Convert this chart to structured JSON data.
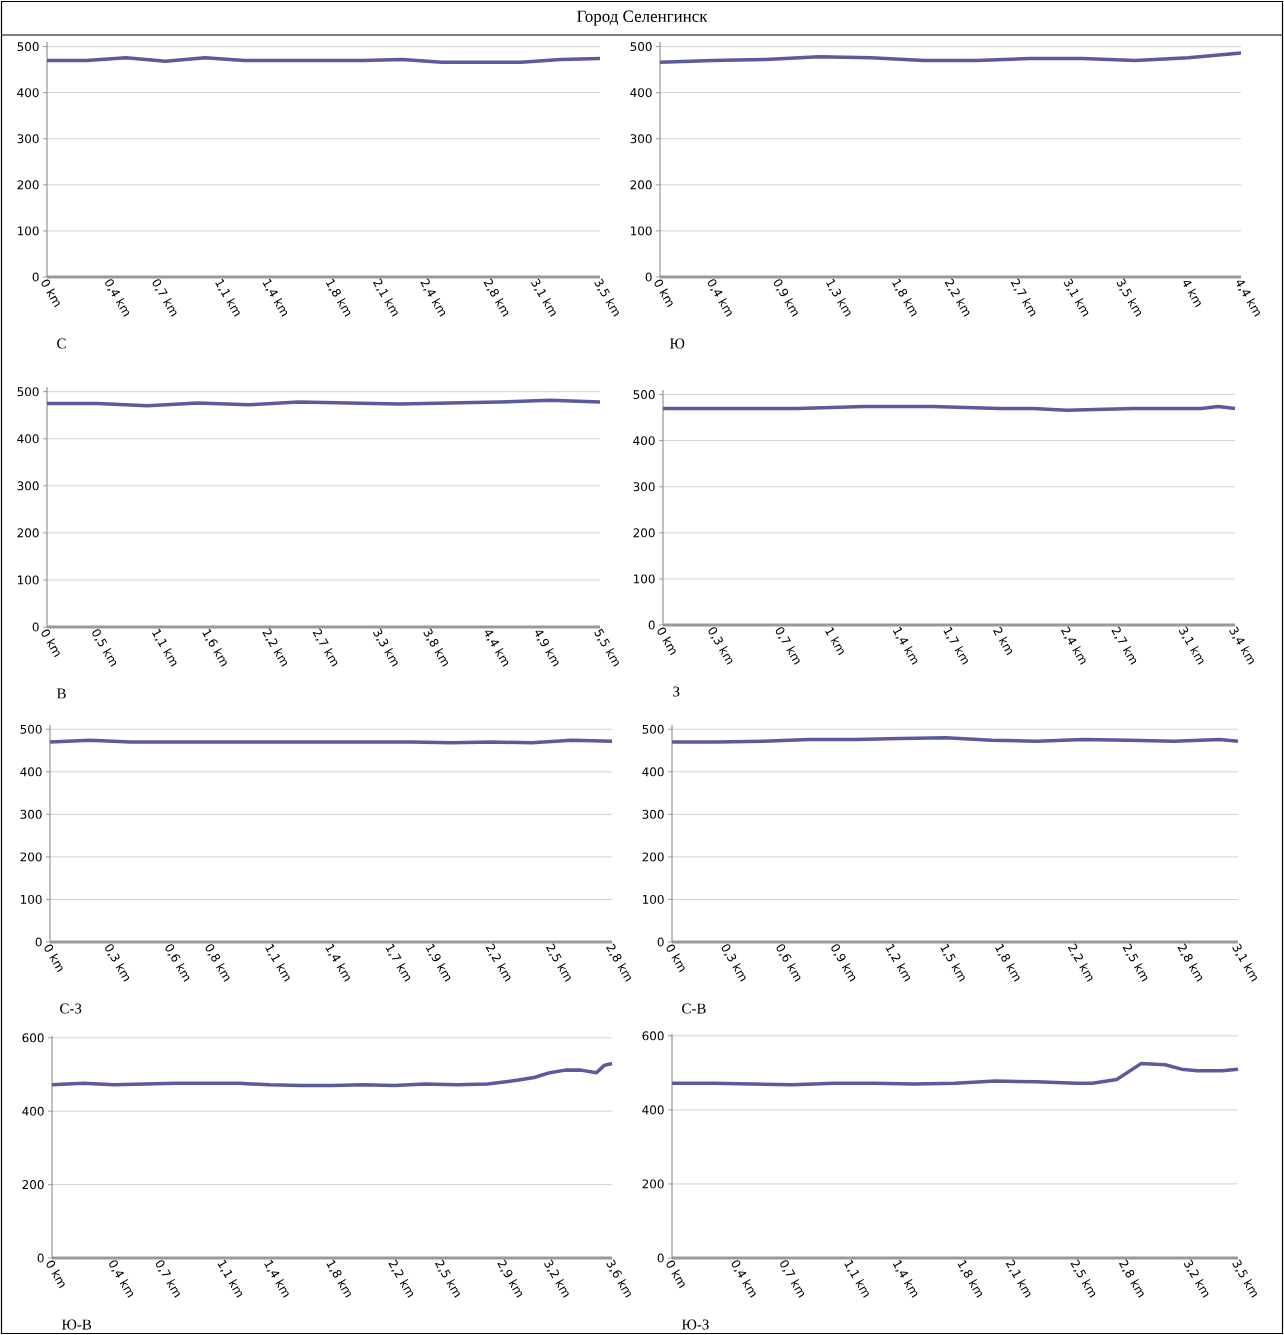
{
  "chart_data": [
    {
      "type": "line",
      "title": "Город Селенгинск",
      "xlabel": "С",
      "color": "#5a5a9c",
      "grid": "y",
      "xlim": [
        0,
        3.5
      ],
      "ylim": [
        0,
        510
      ],
      "yticks": [
        0,
        100,
        200,
        300,
        400,
        500
      ],
      "xticks": [
        {
          "value": 0,
          "label": "0 km"
        },
        {
          "value": 0.4,
          "label": "0,4 km"
        },
        {
          "value": 0.7,
          "label": "0,7 km"
        },
        {
          "value": 1.1,
          "label": "1,1 km"
        },
        {
          "value": 1.4,
          "label": "1,4 km"
        },
        {
          "value": 1.8,
          "label": "1,8 km"
        },
        {
          "value": 2.1,
          "label": "2,1 km"
        },
        {
          "value": 2.4,
          "label": "2,4 km"
        },
        {
          "value": 2.8,
          "label": "2,8 km"
        },
        {
          "value": 3.1,
          "label": "3,1 km"
        },
        {
          "value": 3.5,
          "label": "3,5 km"
        }
      ],
      "x": [
        0,
        0.25,
        0.5,
        0.75,
        1,
        1.25,
        1.5,
        1.75,
        2,
        2.25,
        2.5,
        2.75,
        3,
        3.25,
        3.5
      ],
      "values": [
        470,
        470,
        476,
        468,
        476,
        470,
        470,
        470,
        470,
        472,
        466,
        466,
        466,
        472,
        474
      ]
    },
    {
      "type": "line",
      "xlabel": "Ю",
      "color": "#5a5a9c",
      "grid": "y",
      "xlim": [
        0,
        4.4
      ],
      "ylim": [
        0,
        510
      ],
      "yticks": [
        0,
        100,
        200,
        300,
        400,
        500
      ],
      "xticks": [
        {
          "value": 0,
          "label": "0 km"
        },
        {
          "value": 0.4,
          "label": "0,4 km"
        },
        {
          "value": 0.9,
          "label": "0,9 km"
        },
        {
          "value": 1.3,
          "label": "1,3 km"
        },
        {
          "value": 1.8,
          "label": "1,8 km"
        },
        {
          "value": 2.2,
          "label": "2,2 km"
        },
        {
          "value": 2.7,
          "label": "2,7 km"
        },
        {
          "value": 3.1,
          "label": "3,1 km"
        },
        {
          "value": 3.5,
          "label": "3,5 km"
        },
        {
          "value": 4,
          "label": "4 km"
        },
        {
          "value": 4.4,
          "label": "4,4 km"
        }
      ],
      "x": [
        0,
        0.4,
        0.8,
        1.2,
        1.6,
        2.0,
        2.4,
        2.8,
        3.2,
        3.6,
        4.0,
        4.4
      ],
      "values": [
        466,
        470,
        472,
        478,
        476,
        470,
        470,
        474,
        474,
        470,
        476,
        486
      ]
    },
    {
      "type": "line",
      "xlabel": "В",
      "color": "#5a5a9c",
      "grid": "y",
      "xlim": [
        0,
        5.5
      ],
      "ylim": [
        0,
        510
      ],
      "yticks": [
        0,
        100,
        200,
        300,
        400,
        500
      ],
      "xticks": [
        {
          "value": 0,
          "label": "0 km"
        },
        {
          "value": 0.5,
          "label": "0,5 km"
        },
        {
          "value": 1.1,
          "label": "1,1 km"
        },
        {
          "value": 1.6,
          "label": "1,6 km"
        },
        {
          "value": 2.2,
          "label": "2,2 km"
        },
        {
          "value": 2.7,
          "label": "2,7 km"
        },
        {
          "value": 3.3,
          "label": "3,3 km"
        },
        {
          "value": 3.8,
          "label": "3,8 km"
        },
        {
          "value": 4.4,
          "label": "4,4 km"
        },
        {
          "value": 4.9,
          "label": "4,9 km"
        },
        {
          "value": 5.5,
          "label": "5,5 km"
        }
      ],
      "x": [
        0,
        0.5,
        1,
        1.5,
        2,
        2.5,
        3,
        3.5,
        4,
        4.5,
        5,
        5.5
      ],
      "values": [
        475,
        475,
        470,
        476,
        472,
        478,
        476,
        474,
        476,
        478,
        482,
        478
      ]
    },
    {
      "type": "line",
      "xlabel": "З",
      "color": "#5a5a9c",
      "grid": "y",
      "xlim": [
        0,
        3.4
      ],
      "ylim": [
        0,
        510
      ],
      "yticks": [
        0,
        100,
        200,
        300,
        400,
        500
      ],
      "xticks": [
        {
          "value": 0,
          "label": "0 km"
        },
        {
          "value": 0.3,
          "label": "0,3 km"
        },
        {
          "value": 0.7,
          "label": "0,7 km"
        },
        {
          "value": 1,
          "label": "1 km"
        },
        {
          "value": 1.4,
          "label": "1,4 km"
        },
        {
          "value": 1.7,
          "label": "1,7 km"
        },
        {
          "value": 2,
          "label": "2 km"
        },
        {
          "value": 2.4,
          "label": "2,4 km"
        },
        {
          "value": 2.7,
          "label": "2,7 km"
        },
        {
          "value": 3.1,
          "label": "3,1 km"
        },
        {
          "value": 3.4,
          "label": "3,4 km"
        }
      ],
      "x": [
        0,
        0.4,
        0.8,
        1.2,
        1.6,
        2.0,
        2.2,
        2.4,
        2.8,
        3.2,
        3.3,
        3.4
      ],
      "values": [
        470,
        470,
        470,
        474,
        474,
        470,
        470,
        466,
        470,
        470,
        474,
        470
      ]
    },
    {
      "type": "line",
      "xlabel": "С-З",
      "color": "#5a5a9c",
      "grid": "y",
      "xlim": [
        0,
        2.8
      ],
      "ylim": [
        0,
        510
      ],
      "yticks": [
        0,
        100,
        200,
        300,
        400,
        500
      ],
      "xticks": [
        {
          "value": 0,
          "label": "0 km"
        },
        {
          "value": 0.3,
          "label": "0,3 km"
        },
        {
          "value": 0.6,
          "label": "0,6 km"
        },
        {
          "value": 0.8,
          "label": "0,8 km"
        },
        {
          "value": 1.1,
          "label": "1,1 km"
        },
        {
          "value": 1.4,
          "label": "1,4 km"
        },
        {
          "value": 1.7,
          "label": "1,7 km"
        },
        {
          "value": 1.9,
          "label": "1,9 km"
        },
        {
          "value": 2.2,
          "label": "2,2 km"
        },
        {
          "value": 2.5,
          "label": "2,5 km"
        },
        {
          "value": 2.8,
          "label": "2,8 km"
        }
      ],
      "x": [
        0,
        0.2,
        0.4,
        0.6,
        0.8,
        1.0,
        1.2,
        1.4,
        1.6,
        1.8,
        2.0,
        2.2,
        2.4,
        2.6,
        2.8
      ],
      "values": [
        470,
        474,
        470,
        470,
        470,
        470,
        470,
        470,
        470,
        470,
        468,
        470,
        468,
        474,
        472
      ]
    },
    {
      "type": "line",
      "xlabel": "С-В",
      "color": "#5a5a9c",
      "grid": "y",
      "xlim": [
        0,
        3.1
      ],
      "ylim": [
        0,
        510
      ],
      "yticks": [
        0,
        100,
        200,
        300,
        400,
        500
      ],
      "xticks": [
        {
          "value": 0,
          "label": "0 km"
        },
        {
          "value": 0.3,
          "label": "0,3 km"
        },
        {
          "value": 0.6,
          "label": "0,6 km"
        },
        {
          "value": 0.9,
          "label": "0,9 km"
        },
        {
          "value": 1.2,
          "label": "1,2 km"
        },
        {
          "value": 1.5,
          "label": "1,5 km"
        },
        {
          "value": 1.8,
          "label": "1,8 km"
        },
        {
          "value": 2.2,
          "label": "2,2 km"
        },
        {
          "value": 2.5,
          "label": "2,5 km"
        },
        {
          "value": 2.8,
          "label": "2,8 km"
        },
        {
          "value": 3.1,
          "label": "3,1 km"
        }
      ],
      "x": [
        0,
        0.25,
        0.5,
        0.75,
        1.0,
        1.25,
        1.5,
        1.75,
        2.0,
        2.25,
        2.5,
        2.75,
        3.0,
        3.1
      ],
      "values": [
        470,
        470,
        472,
        476,
        476,
        478,
        480,
        474,
        472,
        476,
        474,
        472,
        476,
        472
      ]
    },
    {
      "type": "line",
      "xlabel": "Ю-В",
      "color": "#5a5a9c",
      "grid": "y",
      "xlim": [
        0,
        3.6
      ],
      "ylim": [
        0,
        605
      ],
      "yticks": [
        0,
        200,
        400,
        600
      ],
      "xticks": [
        {
          "value": 0,
          "label": "0 km"
        },
        {
          "value": 0.4,
          "label": "0,4 km"
        },
        {
          "value": 0.7,
          "label": "0,7 km"
        },
        {
          "value": 1.1,
          "label": "1,1 km"
        },
        {
          "value": 1.4,
          "label": "1,4 km"
        },
        {
          "value": 1.8,
          "label": "1,8 km"
        },
        {
          "value": 2.2,
          "label": "2,2 km"
        },
        {
          "value": 2.5,
          "label": "2,5 km"
        },
        {
          "value": 2.9,
          "label": "2,9 km"
        },
        {
          "value": 3.2,
          "label": "3,2 km"
        },
        {
          "value": 3.6,
          "label": "3,6 km"
        }
      ],
      "x": [
        0,
        0.2,
        0.4,
        0.6,
        0.8,
        1.0,
        1.2,
        1.4,
        1.6,
        1.8,
        2.0,
        2.2,
        2.4,
        2.6,
        2.8,
        3.0,
        3.1,
        3.2,
        3.3,
        3.4,
        3.5,
        3.55,
        3.6
      ],
      "values": [
        472,
        476,
        472,
        474,
        476,
        476,
        476,
        472,
        470,
        470,
        472,
        470,
        474,
        472,
        474,
        485,
        492,
        505,
        512,
        512,
        505,
        525,
        530
      ]
    },
    {
      "type": "line",
      "xlabel": "Ю-З",
      "color": "#5a5a9c",
      "grid": "y",
      "xlim": [
        0,
        3.5
      ],
      "ylim": [
        0,
        605
      ],
      "yticks": [
        0,
        200,
        400,
        600
      ],
      "xticks": [
        {
          "value": 0,
          "label": "0 km"
        },
        {
          "value": 0.4,
          "label": "0,4 km"
        },
        {
          "value": 0.7,
          "label": "0,7 km"
        },
        {
          "value": 1.1,
          "label": "1,1 km"
        },
        {
          "value": 1.4,
          "label": "1,4 km"
        },
        {
          "value": 1.8,
          "label": "1,8 km"
        },
        {
          "value": 2.1,
          "label": "2,1 km"
        },
        {
          "value": 2.5,
          "label": "2,5 km"
        },
        {
          "value": 2.8,
          "label": "2,8 km"
        },
        {
          "value": 3.2,
          "label": "3,2 km"
        },
        {
          "value": 3.5,
          "label": "3,5 km"
        }
      ],
      "x": [
        0,
        0.25,
        0.5,
        0.75,
        1.0,
        1.25,
        1.5,
        1.75,
        2.0,
        2.25,
        2.5,
        2.6,
        2.75,
        2.9,
        3.05,
        3.15,
        3.25,
        3.4,
        3.5
      ],
      "values": [
        472,
        472,
        470,
        468,
        472,
        472,
        470,
        472,
        478,
        476,
        472,
        472,
        482,
        525,
        522,
        510,
        506,
        506,
        510
      ]
    }
  ]
}
